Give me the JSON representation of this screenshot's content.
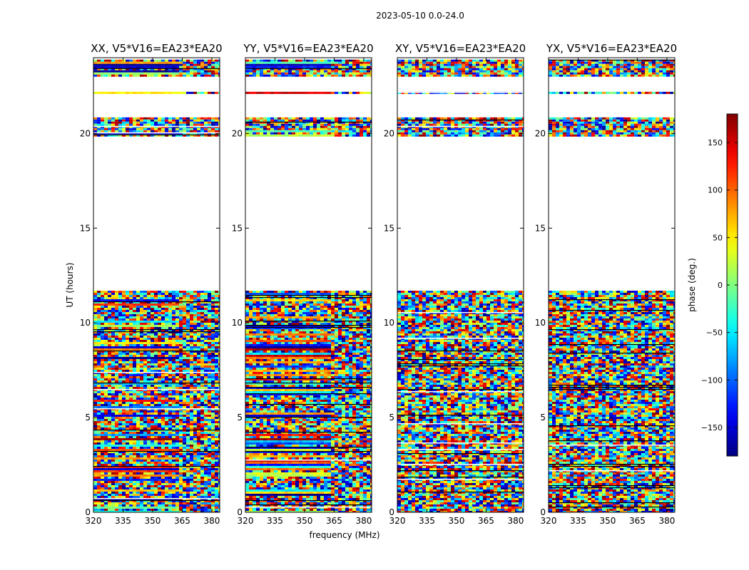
{
  "figure_title": "2023-05-10 0.0-24.0",
  "chart_data": {
    "type": "heatmap",
    "title": "2023-05-10 0.0-24.0",
    "xlabel": "frequency (MHz)",
    "ylabel": "UT (hours)",
    "xlim": [
      320,
      384
    ],
    "ylim": [
      0,
      24
    ],
    "xticks": [
      320,
      335,
      350,
      365,
      380
    ],
    "yticks": [
      0,
      5,
      10,
      15,
      20
    ],
    "panels": [
      {
        "name": "XX",
        "title": "XX, V5*V16=EA23*EA20"
      },
      {
        "name": "YY",
        "title": "YY, V5*V16=EA23*EA20"
      },
      {
        "name": "XY",
        "title": "XY, V5*V16=EA23*EA20"
      },
      {
        "name": "YX",
        "title": "YX, V5*V16=EA23*EA20"
      }
    ],
    "colorbar": {
      "label": "phase (deg.)",
      "range": [
        -180,
        180
      ],
      "ticks": [
        -150,
        -100,
        -50,
        0,
        50,
        100,
        150
      ],
      "tick_labels": [
        "−150",
        "−100",
        "−50",
        "0",
        "50",
        "100",
        "150"
      ],
      "colormap": "jet"
    },
    "data_time_ranges_hours": [
      [
        0,
        11.7
      ],
      [
        19.9,
        20.85
      ],
      [
        22.1,
        22.2
      ],
      [
        23.1,
        23.9
      ]
    ]
  }
}
